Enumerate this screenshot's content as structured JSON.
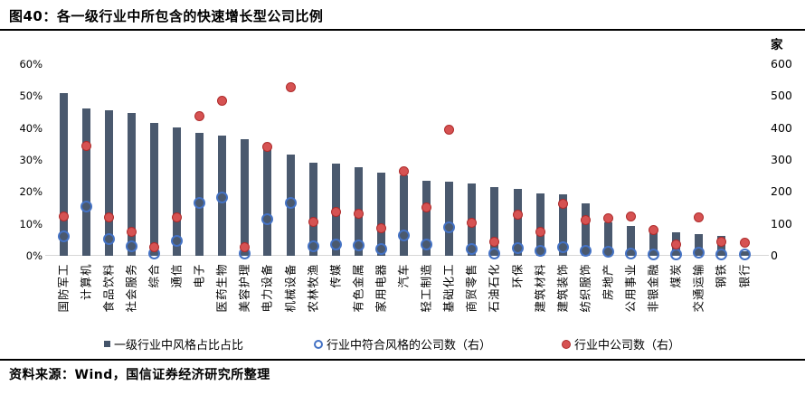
{
  "title": "图40：各一级行业中所包含的快速增长型公司比例",
  "source": "资料来源：Wind，国信证券经济研究所整理",
  "axes": {
    "left_ticks": [
      "60%",
      "50%",
      "40%",
      "30%",
      "20%",
      "10%",
      "0%"
    ],
    "right_ticks": [
      "600",
      "500",
      "400",
      "300",
      "200",
      "100",
      "0"
    ],
    "right_unit": "家"
  },
  "legend": [
    {
      "marker": "square",
      "label": "一级行业中风格占比占比"
    },
    {
      "marker": "open-circle",
      "label": "行业中符合风格的公司数（右）"
    },
    {
      "marker": "filled-circle",
      "label": "行业中公司数（右）"
    }
  ],
  "colors": {
    "bar": "#4a596e",
    "open_circle_stroke": "#4472c4",
    "filled_circle_fill": "#d65252",
    "filled_circle_stroke": "#ae2b2b",
    "axis_baseline": "#d6d6d6",
    "rule": "#000000"
  },
  "chart_data": {
    "type": "bar",
    "subtype": "bar-with-two-scatter-series",
    "title": "图40：各一级行业中所包含的快速增长型公司比例",
    "grid": false,
    "legend_position": "bottom",
    "left_axis": {
      "min": 0,
      "max": 60,
      "unit": "%",
      "ticks": [
        0,
        10,
        20,
        30,
        40,
        50,
        60
      ]
    },
    "right_axis": {
      "min": 0,
      "max": 600,
      "unit": "家",
      "ticks": [
        0,
        100,
        200,
        300,
        400,
        500,
        600
      ]
    },
    "categories": [
      "国防军工",
      "计算机",
      "食品饮料",
      "社会服务",
      "综合",
      "通信",
      "电子",
      "医药生物",
      "美容护理",
      "电力设备",
      "机械设备",
      "农林牧渔",
      "传媒",
      "有色金属",
      "家用电器",
      "汽车",
      "轻工制造",
      "基础化工",
      "商贸零售",
      "石油石化",
      "环保",
      "建筑材料",
      "建筑装饰",
      "纺织服饰",
      "房地产",
      "公用事业",
      "非银金融",
      "煤炭",
      "交通运输",
      "钢铁",
      "银行"
    ],
    "series": [
      {
        "name": "一级行业中风格占比占比",
        "type": "bar",
        "axis": "left",
        "unit": "%",
        "values": [
          51,
          46.1,
          45.5,
          44.8,
          41.5,
          40.2,
          38.6,
          37.7,
          36.4,
          34.4,
          31.8,
          29.1,
          28.8,
          27.8,
          26.1,
          25.1,
          23.4,
          23.1,
          22.7,
          21.4,
          21.0,
          19.5,
          19.3,
          16.3,
          10.4,
          9.3,
          8.6,
          7.5,
          6.8,
          6.1,
          1.3
        ]
      },
      {
        "name": "行业中符合风格的公司数（右）",
        "type": "scatter",
        "marker": "open-circle",
        "axis": "right",
        "values": [
          62,
          155,
          52,
          31,
          6,
          48,
          165,
          182,
          6,
          115,
          166,
          30,
          36,
          33,
          21,
          64,
          34,
          88,
          21,
          6,
          24,
          15,
          28,
          16,
          12,
          8,
          5,
          4,
          10,
          5,
          3
        ]
      },
      {
        "name": "行业中公司数（右）",
        "type": "scatter",
        "marker": "filled-circle",
        "axis": "right",
        "values": [
          122,
          345,
          120,
          74,
          26,
          121,
          436,
          486,
          28,
          340,
          527,
          105,
          136,
          131,
          86,
          266,
          152,
          396,
          103,
          45,
          130,
          74,
          162,
          111,
          118,
          124,
          80,
          34,
          120,
          43,
          40
        ]
      }
    ]
  }
}
